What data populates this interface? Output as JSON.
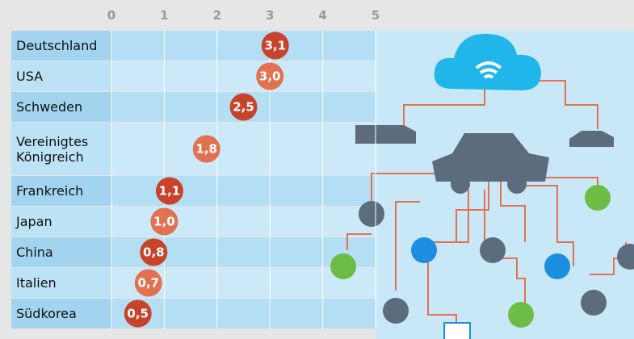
{
  "chart_data": {
    "type": "dot",
    "categories": [
      "Deutschland",
      "USA",
      "Schweden",
      "Vereinigtes Königreich",
      "Frankreich",
      "Japan",
      "China",
      "Italien",
      "Südkorea"
    ],
    "values": [
      3.1,
      3.0,
      2.5,
      1.8,
      1.1,
      1.0,
      0.8,
      0.7,
      0.5
    ],
    "value_labels": [
      "3,1",
      "3,0",
      "2,5",
      "1,8",
      "1,1",
      "1,0",
      "0,8",
      "0,7",
      "0,5"
    ],
    "colors": [
      "#c9432c",
      "#e2724f",
      "#c9432c",
      "#e2724f",
      "#c9432c",
      "#e2724f",
      "#c9432c",
      "#e2724f",
      "#c9432c"
    ],
    "xlim": [
      0,
      5
    ],
    "xticks": [
      0,
      1,
      2,
      3,
      4,
      5
    ],
    "grid": true
  }
}
